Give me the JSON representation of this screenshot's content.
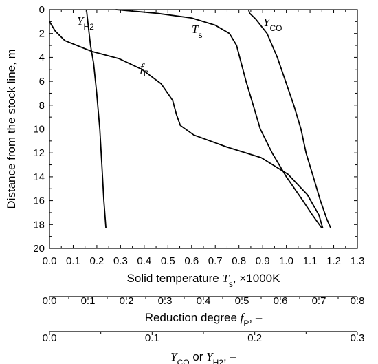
{
  "chart_data": {
    "type": "line",
    "y_axis": {
      "label": "Distance from the stock line, m",
      "range": [
        0,
        20
      ],
      "inverted": true,
      "ticks": [
        0,
        2,
        4,
        6,
        8,
        10,
        12,
        14,
        16,
        18,
        20
      ]
    },
    "x_axes": [
      {
        "id": "temperature",
        "label_prefix": "Solid temperature ",
        "label_var": "T",
        "label_sub": "s",
        "label_suffix": ", ×1000K",
        "range": [
          0,
          1.3
        ],
        "ticks": [
          0.0,
          0.1,
          0.2,
          0.3,
          0.4,
          0.5,
          0.6,
          0.7,
          0.8,
          0.9,
          1.0,
          1.1,
          1.2,
          1.3
        ],
        "tick_labels": [
          "0.0",
          "0.1",
          "0.2",
          "0.3",
          "0.4",
          "0.5",
          "0.6",
          "0.7",
          "0.8",
          "0.9",
          "1.0",
          "1.1",
          "1.2",
          "1.3"
        ]
      },
      {
        "id": "reduction",
        "label_prefix": "Reduction degree ",
        "label_var": "f",
        "label_sub": "P",
        "label_suffix": ", –",
        "range": [
          0,
          0.8
        ],
        "ticks": [
          0.0,
          0.1,
          0.2,
          0.3,
          0.4,
          0.5,
          0.6,
          0.7,
          0.8
        ],
        "tick_labels": [
          "0.0",
          "0.1",
          "0.2",
          "0.3",
          "0.4",
          "0.5",
          "0.6",
          "0.7",
          "0.8"
        ]
      },
      {
        "id": "gas",
        "label_var1": "Y",
        "label_sub1": "CO",
        "label_mid": " or ",
        "label_var2": "Y",
        "label_sub2": "H2",
        "label_suffix": ", –",
        "range": [
          0,
          0.3
        ],
        "ticks": [
          0.0,
          0.1,
          0.2,
          0.3
        ],
        "tick_labels": [
          "0.0",
          "0.1",
          "0.2",
          "0.3"
        ]
      }
    ],
    "series": [
      {
        "name": "Ts",
        "label_var": "T",
        "label_sub": "s",
        "axis": "temperature",
        "points": [
          [
            0.28,
            0
          ],
          [
            0.45,
            0.3
          ],
          [
            0.6,
            0.7
          ],
          [
            0.7,
            1.3
          ],
          [
            0.76,
            2.0
          ],
          [
            0.79,
            3.0
          ],
          [
            0.81,
            4.5
          ],
          [
            0.83,
            6.0
          ],
          [
            0.86,
            8.0
          ],
          [
            0.89,
            10.0
          ],
          [
            0.94,
            12.0
          ],
          [
            1.0,
            14.0
          ],
          [
            1.07,
            16.0
          ],
          [
            1.11,
            17.2
          ],
          [
            1.15,
            18.3
          ]
        ]
      },
      {
        "name": "YCO",
        "label_var": "Y",
        "label_sub": "CO",
        "axis": "gas",
        "points": [
          [
            0.194,
            0
          ],
          [
            0.195,
            0.3
          ],
          [
            0.201,
            0.8
          ],
          [
            0.212,
            2.0
          ],
          [
            0.222,
            4.0
          ],
          [
            0.23,
            6.0
          ],
          [
            0.238,
            8.0
          ],
          [
            0.245,
            10.0
          ],
          [
            0.25,
            12.0
          ],
          [
            0.257,
            14.0
          ],
          [
            0.264,
            16.0
          ],
          [
            0.27,
            17.5
          ],
          [
            0.274,
            18.3
          ]
        ]
      },
      {
        "name": "YH2",
        "label_var": "Y",
        "label_sub": "H2",
        "axis": "gas",
        "points": [
          [
            0.036,
            0
          ],
          [
            0.038,
            1.5
          ],
          [
            0.04,
            3.0
          ],
          [
            0.043,
            4.5
          ],
          [
            0.046,
            7.0
          ],
          [
            0.049,
            10.0
          ],
          [
            0.051,
            13.0
          ],
          [
            0.053,
            16.0
          ],
          [
            0.055,
            18.3
          ]
        ]
      },
      {
        "name": "fP",
        "label_var": "f",
        "label_sub": "P",
        "axis": "reduction",
        "points": [
          [
            0.0,
            1.0
          ],
          [
            0.015,
            1.8
          ],
          [
            0.04,
            2.6
          ],
          [
            0.11,
            3.5
          ],
          [
            0.18,
            4.1
          ],
          [
            0.24,
            5.0
          ],
          [
            0.29,
            6.2
          ],
          [
            0.32,
            7.6
          ],
          [
            0.33,
            8.8
          ],
          [
            0.34,
            9.7
          ],
          [
            0.375,
            10.5
          ],
          [
            0.46,
            11.5
          ],
          [
            0.55,
            12.4
          ],
          [
            0.62,
            13.8
          ],
          [
            0.67,
            15.5
          ],
          [
            0.7,
            17.2
          ],
          [
            0.71,
            18.3
          ]
        ]
      }
    ]
  }
}
